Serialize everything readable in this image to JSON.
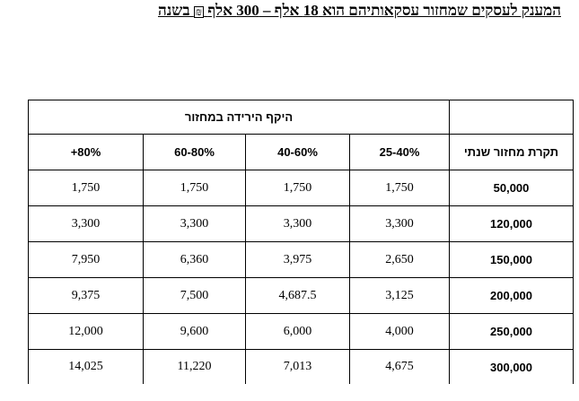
{
  "title": {
    "prefix": "המענק לעסקים שמחזור עסקאותיהם הוא 18 אלף – 300 אלף",
    "currency_symbol": "₪",
    "suffix": "בשנה"
  },
  "table": {
    "group_header": "היקף הירידה במחזור",
    "row_header_label": "תקרת מחזור שנתי",
    "columns": [
      "25-40%",
      "40-60%",
      "60-80%",
      "80%+"
    ],
    "rows": [
      {
        "turnover": "50,000",
        "values": [
          "1,750",
          "1,750",
          "1,750",
          "1,750"
        ]
      },
      {
        "turnover": "120,000",
        "values": [
          "3,300",
          "3,300",
          "3,300",
          "3,300"
        ]
      },
      {
        "turnover": "150,000",
        "values": [
          "2,650",
          "3,975",
          "6,360",
          "7,950"
        ]
      },
      {
        "turnover": "200,000",
        "values": [
          "3,125",
          "4,687.5",
          "7,500",
          "9,375"
        ]
      },
      {
        "turnover": "250,000",
        "values": [
          "4,000",
          "6,000",
          "9,600",
          "12,000"
        ]
      },
      {
        "turnover": "300,000",
        "values": [
          "4,675",
          "7,013",
          "11,220",
          "14,025"
        ]
      }
    ]
  }
}
